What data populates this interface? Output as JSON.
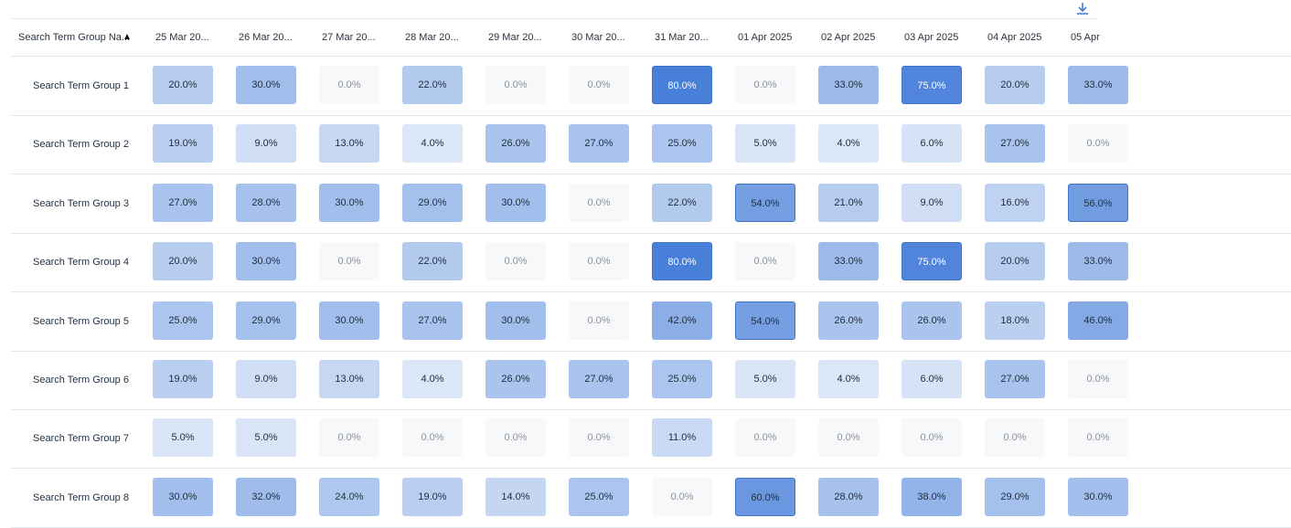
{
  "toolbar": {
    "download_icon": "download-icon"
  },
  "table": {
    "first_column_label": "Search Term Group Na...",
    "sort_icon": "sort-ascending-icon",
    "columns": [
      "25 Mar 20...",
      "26 Mar 20...",
      "27 Mar 20...",
      "28 Mar 20...",
      "29 Mar 20...",
      "30 Mar 20...",
      "31 Mar 20...",
      "01 Apr 2025",
      "02 Apr 2025",
      "03 Apr 2025",
      "04 Apr 2025",
      "05 Apr"
    ],
    "rows": [
      {
        "label": "Search Term Group 1",
        "values": [
          "20.0%",
          "30.0%",
          "0.0%",
          "22.0%",
          "0.0%",
          "0.0%",
          "80.0%",
          "0.0%",
          "33.0%",
          "75.0%",
          "20.0%",
          "33.0%"
        ]
      },
      {
        "label": "Search Term Group 2",
        "values": [
          "19.0%",
          "9.0%",
          "13.0%",
          "4.0%",
          "26.0%",
          "27.0%",
          "25.0%",
          "5.0%",
          "4.0%",
          "6.0%",
          "27.0%",
          "0.0%"
        ]
      },
      {
        "label": "Search Term Group 3",
        "values": [
          "27.0%",
          "28.0%",
          "30.0%",
          "29.0%",
          "30.0%",
          "0.0%",
          "22.0%",
          "54.0%",
          "21.0%",
          "9.0%",
          "16.0%",
          "56.0%"
        ]
      },
      {
        "label": "Search Term Group 4",
        "values": [
          "20.0%",
          "30.0%",
          "0.0%",
          "22.0%",
          "0.0%",
          "0.0%",
          "80.0%",
          "0.0%",
          "33.0%",
          "75.0%",
          "20.0%",
          "33.0%"
        ]
      },
      {
        "label": "Search Term Group 5",
        "values": [
          "25.0%",
          "29.0%",
          "30.0%",
          "27.0%",
          "30.0%",
          "0.0%",
          "42.0%",
          "54.0%",
          "26.0%",
          "26.0%",
          "18.0%",
          "46.0%"
        ]
      },
      {
        "label": "Search Term Group 6",
        "values": [
          "19.0%",
          "9.0%",
          "13.0%",
          "4.0%",
          "26.0%",
          "27.0%",
          "25.0%",
          "5.0%",
          "4.0%",
          "6.0%",
          "27.0%",
          "0.0%"
        ]
      },
      {
        "label": "Search Term Group 7",
        "values": [
          "5.0%",
          "5.0%",
          "0.0%",
          "0.0%",
          "0.0%",
          "0.0%",
          "11.0%",
          "0.0%",
          "0.0%",
          "0.0%",
          "0.0%",
          "0.0%"
        ]
      },
      {
        "label": "Search Term Group 8",
        "values": [
          "30.0%",
          "32.0%",
          "24.0%",
          "19.0%",
          "14.0%",
          "25.0%",
          "0.0%",
          "60.0%",
          "28.0%",
          "38.0%",
          "29.0%",
          "30.0%"
        ]
      }
    ],
    "colors": {
      "accent_high": "#4f86d9",
      "accent_mid": "#7fa2dc",
      "accent_low": "#b8cbec",
      "zero_fill": "#f7f8fa",
      "text_dark": "#1f2d3d",
      "text_muted": "#8a919c",
      "text_on_accent": "#ffffff"
    }
  }
}
